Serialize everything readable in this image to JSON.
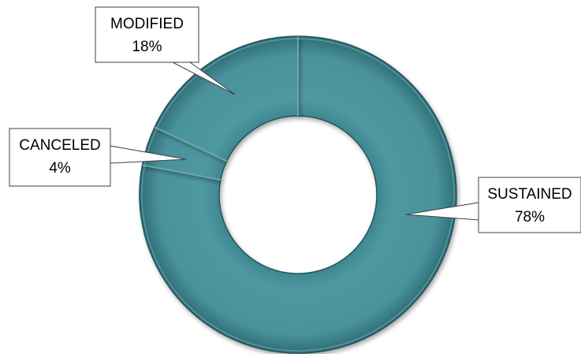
{
  "chart_data": {
    "type": "pie",
    "variant": "doughnut",
    "series": [
      {
        "values": [
          {
            "label": "SUSTAINED",
            "value": 78,
            "display": "78%"
          },
          {
            "label": "CANCELED",
            "value": 4,
            "display": "4%"
          },
          {
            "label": "MODIFIED",
            "value": 18,
            "display": "18%"
          }
        ]
      }
    ],
    "slice_order": "clockwise from top, starting at 12 o'clock",
    "colors": {
      "slice_fill": "#4a929c",
      "slice_highlight": "#8cc6cf",
      "slice_shadow": "#22555c",
      "callout_border": "#3f3f3f",
      "callout_fill": "#ffffff"
    },
    "legend": "none",
    "data_labels": "callouts"
  }
}
